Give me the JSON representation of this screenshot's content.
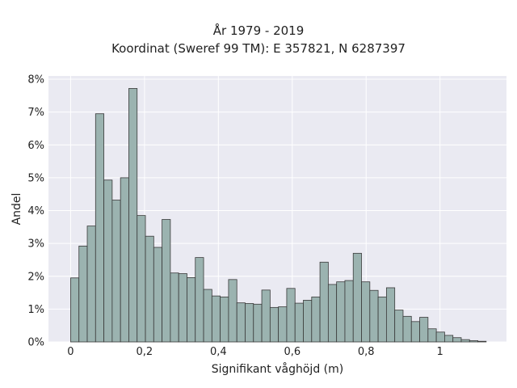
{
  "chart_data": {
    "type": "bar",
    "title_lines": [
      "År 1979 - 2019",
      "Koordinat (Sweref 99 TM): E 357821, N 6287397"
    ],
    "xlabel": "Signifikant våghöjd (m)",
    "ylabel": "Andel",
    "xlim": [
      -0.06,
      1.18
    ],
    "ylim": [
      0,
      8.1
    ],
    "grid": true,
    "x_ticks": [
      {
        "value": 0,
        "label": "0"
      },
      {
        "value": 0.2,
        "label": "0,2"
      },
      {
        "value": 0.4,
        "label": "0,4"
      },
      {
        "value": 0.6,
        "label": "0,6"
      },
      {
        "value": 0.8,
        "label": "0,8"
      },
      {
        "value": 1.0,
        "label": "1"
      }
    ],
    "y_ticks": [
      {
        "value": 0,
        "label": "0%"
      },
      {
        "value": 1,
        "label": "1%"
      },
      {
        "value": 2,
        "label": "2%"
      },
      {
        "value": 3,
        "label": "3%"
      },
      {
        "value": 4,
        "label": "4%"
      },
      {
        "value": 5,
        "label": "5%"
      },
      {
        "value": 6,
        "label": "6%"
      },
      {
        "value": 7,
        "label": "7%"
      },
      {
        "value": 8,
        "label": "8%"
      }
    ],
    "bin_start": 0.0,
    "bin_width": 0.0225,
    "values": [
      1.95,
      2.92,
      3.53,
      6.95,
      4.93,
      4.32,
      5.0,
      7.72,
      3.85,
      3.22,
      2.88,
      3.73,
      2.1,
      2.08,
      1.96,
      2.57,
      1.6,
      1.4,
      1.37,
      1.9,
      1.19,
      1.17,
      1.15,
      1.58,
      1.05,
      1.07,
      1.63,
      1.18,
      1.27,
      1.37,
      2.43,
      1.75,
      1.83,
      1.87,
      2.7,
      1.83,
      1.57,
      1.37,
      1.65,
      0.97,
      0.78,
      0.62,
      0.75,
      0.4,
      0.3,
      0.2,
      0.13,
      0.07,
      0.04,
      0.02
    ],
    "colors": {
      "bar_fill": "#9bb3b0",
      "bar_stroke": "#3a3a3a",
      "plot_bg": "#eaeaf2",
      "grid": "#ffffff",
      "text": "#222222"
    }
  }
}
